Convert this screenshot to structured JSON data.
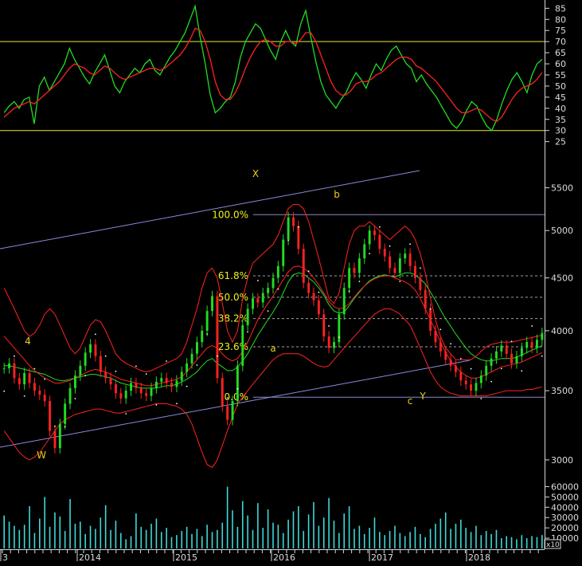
{
  "chart_data": [
    {
      "type": "line",
      "panel": "oscillator",
      "y_ticks": [
        25,
        30,
        35,
        40,
        45,
        50,
        55,
        60,
        65,
        70,
        75,
        80,
        85
      ],
      "ylim": [
        22,
        88
      ],
      "reference_lines": [
        70,
        30
      ],
      "series": [
        {
          "color": "#22dd22",
          "values": [
            38,
            41,
            43,
            40,
            44,
            45,
            33,
            50,
            54,
            48,
            52,
            56,
            60,
            67,
            62,
            58,
            54,
            51,
            56,
            60,
            64,
            57,
            50,
            47,
            52,
            55,
            58,
            56,
            60,
            62,
            57,
            55,
            59,
            63,
            66,
            70,
            74,
            80,
            86,
            72,
            60,
            46,
            38,
            40,
            43,
            45,
            52,
            63,
            70,
            74,
            78,
            76,
            71,
            66,
            62,
            70,
            75,
            70,
            68,
            78,
            84,
            72,
            61,
            52,
            46,
            43,
            40,
            44,
            47,
            52,
            56,
            53,
            49,
            55,
            60,
            57,
            62,
            66,
            68,
            64,
            60,
            58,
            52,
            55,
            51,
            48,
            45,
            41,
            37,
            33,
            31,
            34,
            39,
            43,
            41,
            36,
            32,
            30,
            35,
            42,
            48,
            53,
            56,
            52,
            47,
            55,
            60,
            62
          ]
        },
        {
          "color": "#ff2222",
          "values": [
            36,
            38,
            40,
            41,
            42,
            43,
            42,
            44,
            46,
            48,
            50,
            52,
            55,
            58,
            60,
            59,
            58,
            56,
            55,
            57,
            59,
            58,
            56,
            54,
            53,
            54,
            55,
            56,
            57,
            58,
            58,
            57,
            58,
            60,
            62,
            64,
            67,
            71,
            76,
            75,
            70,
            62,
            52,
            46,
            44,
            44,
            47,
            52,
            58,
            63,
            67,
            70,
            71,
            70,
            68,
            68,
            70,
            70,
            69,
            71,
            74,
            74,
            70,
            64,
            58,
            52,
            48,
            46,
            46,
            48,
            51,
            52,
            52,
            53,
            55,
            56,
            58,
            60,
            62,
            63,
            63,
            62,
            59,
            58,
            56,
            54,
            52,
            49,
            46,
            43,
            40,
            38,
            38,
            39,
            40,
            39,
            37,
            35,
            34,
            36,
            40,
            44,
            47,
            49,
            50,
            51,
            53,
            56
          ]
        }
      ]
    },
    {
      "type": "candlestick",
      "panel": "price",
      "scale": "log",
      "y_ticks": [
        3000,
        3500,
        4000,
        4500,
        5000,
        5500
      ],
      "ylim": [
        2900,
        5900
      ],
      "fib_levels": [
        {
          "label": "100.0%",
          "value": 5180
        },
        {
          "label": "61.8%",
          "value": 4520
        },
        {
          "label": "50.0%",
          "value": 4310
        },
        {
          "label": "38.2%",
          "value": 4110
        },
        {
          "label": "23.6%",
          "value": 3860
        },
        {
          "label": "0.0%",
          "value": 3450
        }
      ],
      "wave_labels": [
        "X",
        "b",
        "4",
        "a",
        "W",
        "c",
        "Y"
      ],
      "closes": [
        3680,
        3720,
        3600,
        3550,
        3640,
        3560,
        3500,
        3470,
        3420,
        3200,
        3080,
        3250,
        3400,
        3520,
        3620,
        3700,
        3810,
        3880,
        3780,
        3650,
        3600,
        3550,
        3480,
        3440,
        3500,
        3560,
        3520,
        3480,
        3460,
        3520,
        3570,
        3600,
        3560,
        3530,
        3580,
        3650,
        3720,
        3800,
        3900,
        4000,
        4180,
        4320,
        3600,
        3380,
        3280,
        3420,
        3700,
        4050,
        4200,
        4300,
        4260,
        4350,
        4400,
        4500,
        4620,
        4900,
        5150,
        5050,
        4800,
        4450,
        4350,
        4280,
        4150,
        3950,
        3850,
        3900,
        4150,
        4400,
        4600,
        4550,
        4700,
        4850,
        5000,
        4950,
        4800,
        4720,
        4600,
        4550,
        4700,
        4750,
        4620,
        4500,
        4380,
        4200,
        4000,
        3900,
        3820,
        3750,
        3700,
        3650,
        3580,
        3550,
        3500,
        3560,
        3620,
        3700,
        3760,
        3820,
        3870,
        3800,
        3720,
        3780,
        3850,
        3900,
        3850,
        3920,
        3980
      ],
      "series": [
        {
          "color": "#22dd22",
          "values": [
            3700,
            3700,
            3690,
            3680,
            3670,
            3660,
            3650,
            3640,
            3630,
            3610,
            3590,
            3580,
            3580,
            3590,
            3600,
            3610,
            3620,
            3630,
            3630,
            3620,
            3610,
            3600,
            3580,
            3560,
            3550,
            3540,
            3530,
            3520,
            3520,
            3520,
            3520,
            3530,
            3540,
            3540,
            3550,
            3570,
            3590,
            3620,
            3650,
            3700,
            3740,
            3760,
            3720,
            3690,
            3660,
            3660,
            3690,
            3740,
            3800,
            3880,
            3960,
            4030,
            4100,
            4170,
            4250,
            4350,
            4460,
            4530,
            4550,
            4540,
            4500,
            4460,
            4400,
            4330,
            4240,
            4180,
            4160,
            4170,
            4230,
            4300,
            4360,
            4420,
            4470,
            4500,
            4520,
            4530,
            4520,
            4510,
            4530,
            4550,
            4550,
            4530,
            4490,
            4440,
            4360,
            4280,
            4190,
            4110,
            4040,
            3970,
            3910,
            3850,
            3800,
            3770,
            3750,
            3740,
            3740,
            3750,
            3760,
            3760,
            3760,
            3770,
            3790,
            3810,
            3830,
            3850,
            3870
          ]
        },
        {
          "color": "#ff2222",
          "values": [
            4400,
            4300,
            4200,
            4100,
            4000,
            3950,
            3980,
            4050,
            4150,
            4200,
            4150,
            4050,
            3950,
            3850,
            3800,
            3850,
            3950,
            4050,
            4100,
            4080,
            4000,
            3900,
            3800,
            3750,
            3720,
            3700,
            3680,
            3660,
            3650,
            3660,
            3680,
            3700,
            3720,
            3740,
            3760,
            3800,
            3900,
            4050,
            4200,
            4400,
            4550,
            4600,
            4500,
            4250,
            4000,
            3900,
            4000,
            4300,
            4500,
            4650,
            4700,
            4750,
            4800,
            4850,
            4950,
            5100,
            5250,
            5300,
            5300,
            5250,
            5100,
            4900,
            4700,
            4500,
            4300,
            4250,
            4350,
            4600,
            4850,
            5000,
            5050,
            5050,
            5100,
            5050,
            5000,
            4950,
            4900,
            4950,
            5000,
            5050,
            5000,
            4900,
            4750,
            4550,
            4300,
            4100,
            3950,
            3850,
            3800,
            3750,
            3750,
            3750,
            3750,
            3780,
            3820,
            3860,
            3880,
            3890,
            3900,
            3900,
            3900,
            3910,
            3920,
            3930,
            3940,
            3950,
            3960
          ]
        },
        {
          "color": "#ff2222",
          "values": [
            3200,
            3150,
            3100,
            3050,
            3020,
            3000,
            3020,
            3050,
            3100,
            3150,
            3200,
            3250,
            3280,
            3300,
            3320,
            3330,
            3340,
            3350,
            3360,
            3360,
            3350,
            3340,
            3330,
            3330,
            3340,
            3350,
            3360,
            3370,
            3380,
            3390,
            3400,
            3400,
            3400,
            3390,
            3380,
            3360,
            3320,
            3250,
            3150,
            3050,
            2970,
            2950,
            3000,
            3100,
            3200,
            3300,
            3400,
            3450,
            3500,
            3550,
            3600,
            3650,
            3700,
            3750,
            3780,
            3800,
            3800,
            3800,
            3800,
            3780,
            3750,
            3720,
            3700,
            3690,
            3700,
            3750,
            3800,
            3850,
            3900,
            3950,
            4000,
            4050,
            4100,
            4150,
            4180,
            4200,
            4200,
            4180,
            4150,
            4100,
            4050,
            3950,
            3850,
            3750,
            3650,
            3580,
            3530,
            3500,
            3480,
            3470,
            3460,
            3460,
            3460,
            3460,
            3460,
            3460,
            3470,
            3480,
            3490,
            3500,
            3500,
            3500,
            3500,
            3510,
            3510,
            3520,
            3530
          ]
        },
        {
          "color": "#ff2222",
          "values": [
            3950,
            3900,
            3850,
            3800,
            3750,
            3700,
            3660,
            3630,
            3600,
            3580,
            3560,
            3560,
            3570,
            3580,
            3600,
            3620,
            3640,
            3660,
            3670,
            3660,
            3650,
            3630,
            3610,
            3590,
            3580,
            3570,
            3560,
            3550,
            3540,
            3540,
            3550,
            3560,
            3570,
            3580,
            3590,
            3610,
            3650,
            3700,
            3750,
            3800,
            3850,
            3870,
            3850,
            3800,
            3760,
            3740,
            3760,
            3820,
            3900,
            4000,
            4100,
            4180,
            4250,
            4320,
            4400,
            4480,
            4560,
            4610,
            4620,
            4600,
            4560,
            4500,
            4430,
            4350,
            4270,
            4220,
            4200,
            4210,
            4250,
            4310,
            4370,
            4420,
            4460,
            4490,
            4510,
            4520,
            4520,
            4500,
            4480,
            4460,
            4430,
            4380,
            4300,
            4200,
            4100,
            4000,
            3900,
            3810,
            3740,
            3690,
            3650,
            3620,
            3600,
            3600,
            3610,
            3630,
            3650,
            3670,
            3690,
            3700,
            3710,
            3720,
            3730,
            3750,
            3770,
            3790,
            3810
          ]
        }
      ]
    },
    {
      "type": "bar",
      "panel": "volume",
      "y_ticks": [
        10000,
        20000,
        30000,
        40000,
        50000,
        60000
      ],
      "ylim": [
        0,
        65000
      ],
      "multiplier_label": "x10",
      "x_tick_labels": [
        "3",
        "2014",
        "2015",
        "2016",
        "2017",
        "2018"
      ],
      "values": [
        32000,
        26000,
        22000,
        18000,
        23000,
        41000,
        15000,
        29000,
        50000,
        21000,
        35000,
        31000,
        17000,
        48000,
        24000,
        26000,
        14000,
        22000,
        19000,
        30000,
        42000,
        18000,
        27000,
        15000,
        9000,
        12000,
        34000,
        21000,
        18000,
        24000,
        29000,
        16000,
        20000,
        11000,
        13000,
        17000,
        21000,
        14000,
        19000,
        12000,
        23000,
        16000,
        18000,
        25000,
        60000,
        37000,
        21000,
        46000,
        32000,
        18000,
        44000,
        20000,
        38000,
        25000,
        23000,
        15000,
        28000,
        36000,
        41000,
        17000,
        33000,
        45000,
        22000,
        30000,
        49000,
        27000,
        15000,
        34000,
        41000,
        19000,
        22000,
        14000,
        20000,
        30000,
        16000,
        13000,
        17000,
        22000,
        15000,
        12000,
        16000,
        21000,
        14000,
        11000,
        19000,
        24000,
        29000,
        35000,
        19000,
        24000,
        28000,
        20000,
        16000,
        22000,
        13000,
        17000,
        14000,
        18000,
        10000,
        12000,
        11000,
        9000,
        13000,
        10000,
        12000,
        11000,
        13000
      ]
    }
  ]
}
